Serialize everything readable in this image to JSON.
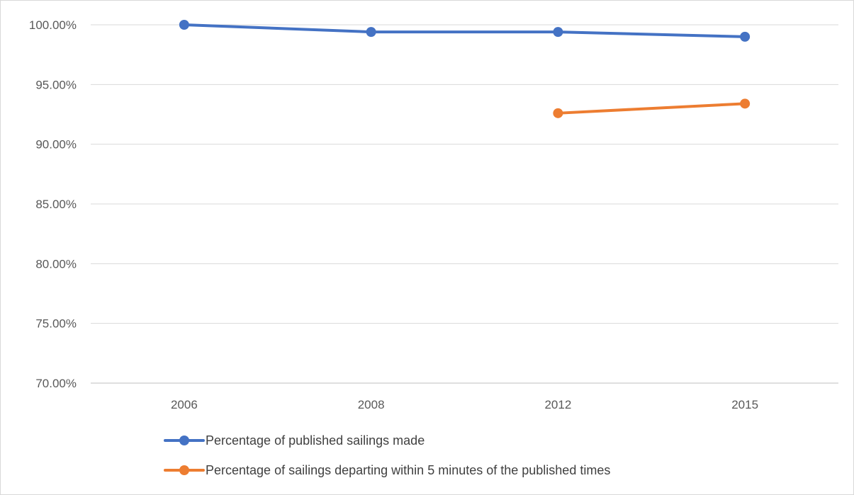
{
  "chart_data": {
    "type": "line",
    "title": "",
    "xlabel": "",
    "ylabel": "",
    "categories": [
      "2006",
      "2008",
      "2012",
      "2015"
    ],
    "ylim": [
      0.7,
      1.0
    ],
    "yticks": [
      0.7,
      0.75,
      0.8,
      0.85,
      0.9,
      0.95,
      1.0
    ],
    "ytick_labels": [
      "70.00%",
      "75.00%",
      "80.00%",
      "85.00%",
      "90.00%",
      "95.00%",
      "100.00%"
    ],
    "grid": true,
    "legend_position": "bottom",
    "series": [
      {
        "name": "Percentage of published sailings made",
        "color": "#4472c4",
        "values": [
          1.0,
          0.994,
          0.994,
          0.99
        ]
      },
      {
        "name": "Percentage of sailings departing within 5 minutes of the published times",
        "color": "#ed7d31",
        "values": [
          null,
          null,
          0.926,
          0.934
        ]
      }
    ]
  }
}
